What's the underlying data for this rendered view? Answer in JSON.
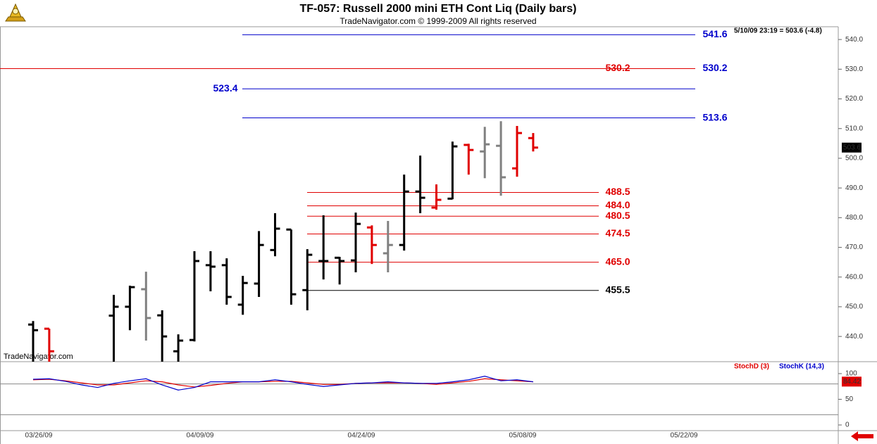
{
  "chart_data": [
    {
      "type": "ohlc",
      "title": "TF-057:  Russell 2000 mini ETH Cont Liq  (Daily bars)",
      "subtitle": "TradeNavigator.com © 1999-2009 All rights reserved",
      "quote": "5/10/09 23:19 = 503.6 (-4.8)",
      "watermark": "TradeNavigator.com",
      "categories": [
        "03/26/09",
        null,
        null,
        null,
        null,
        null,
        null,
        null,
        null,
        null,
        "04/09/09",
        null,
        null,
        null,
        null,
        null,
        null,
        null,
        null,
        null,
        "04/24/09",
        null,
        null,
        null,
        null,
        null,
        null,
        null,
        null,
        null,
        "05/08/09",
        null,
        null,
        null,
        null,
        null,
        null,
        null,
        null,
        null,
        "05/22/09"
      ],
      "open": [
        444,
        442.6,
        null,
        null,
        null,
        447,
        450,
        455.9,
        447.1,
        435,
        438.8,
        464,
        464,
        450.7,
        457.8,
        469.1,
        476,
        455.6,
        465.4,
        466.5,
        465.6,
        476.7,
        468,
        470.8,
        488.8,
        483.4,
        486.4,
        504.5,
        502.3,
        504.2,
        496.6,
        506.8,
        null,
        null,
        null,
        null,
        null,
        null,
        null,
        null,
        null
      ],
      "high": [
        445.2,
        442.6,
        null,
        null,
        null,
        454,
        457.1,
        461.8,
        448.8,
        440.7,
        468.7,
        468.7,
        466.3,
        460.4,
        475.5,
        481.5,
        476,
        469.4,
        480.8,
        466.8,
        481.7,
        477.4,
        478.9,
        494.5,
        500.9,
        491.2,
        505.6,
        504.9,
        510.6,
        512.5,
        510.9,
        508.5,
        null,
        null,
        null,
        null,
        null,
        null,
        null,
        null,
        null
      ],
      "low": [
        430,
        430,
        null,
        null,
        null,
        430,
        442.1,
        438.6,
        430,
        430,
        438.3,
        455.2,
        450.7,
        447.3,
        453.3,
        467,
        450.7,
        448.8,
        459.2,
        457.5,
        461.6,
        464.4,
        461.6,
        468.9,
        481.5,
        482.7,
        486.2,
        494.5,
        493.3,
        487.4,
        493.8,
        502.3,
        null,
        null,
        null,
        null,
        null,
        null,
        null,
        null,
        null
      ],
      "close": [
        442.1,
        435,
        null,
        null,
        null,
        450,
        456.6,
        446.2,
        440,
        438.6,
        465.4,
        463.5,
        453.3,
        458,
        470.8,
        476.3,
        454.2,
        467.5,
        465.4,
        465.4,
        477.9,
        470.8,
        470.8,
        488.8,
        486.7,
        486,
        504,
        502.8,
        504.7,
        493.6,
        508.5,
        503.6,
        null,
        null,
        null,
        null,
        null,
        null,
        null,
        null,
        null
      ],
      "bar_colors": [
        "#000000",
        "#e00000",
        null,
        null,
        null,
        "#000000",
        "#000000",
        "#808080",
        "#000000",
        "#000000",
        "#000000",
        "#000000",
        "#000000",
        "#000000",
        "#000000",
        "#000000",
        "#000000",
        "#000000",
        "#000000",
        "#000000",
        "#000000",
        "#e00000",
        "#808080",
        "#000000",
        "#000000",
        "#e00000",
        "#000000",
        "#e00000",
        "#808080",
        "#808080",
        "#e00000",
        "#e00000",
        null,
        null,
        null,
        null,
        null,
        null,
        null,
        null,
        null
      ],
      "ylim": [
        431.5,
        544.3
      ],
      "yticks": [
        {
          "value": 440,
          "label": "440.0"
        },
        {
          "value": 450,
          "label": "450.0"
        },
        {
          "value": 460,
          "label": "460.0"
        },
        {
          "value": 470,
          "label": "470.0"
        },
        {
          "value": 480,
          "label": "480.0"
        },
        {
          "value": 490,
          "label": "490.0"
        },
        {
          "value": 500,
          "label": "500.0"
        },
        {
          "value": 510,
          "label": "510.0"
        },
        {
          "value": 520,
          "label": "520.0"
        },
        {
          "value": 530,
          "label": "530.0"
        },
        {
          "value": 540,
          "label": "540.0"
        }
      ],
      "last_value": 503.6,
      "levels": [
        {
          "value": 541.6,
          "color": "#0000cc"
        },
        {
          "value": 530.2,
          "color": "#0000cc"
        },
        {
          "value": 523.4,
          "color": "#0000cc"
        },
        {
          "value": 513.6,
          "color": "#0000cc"
        },
        {
          "value": 530.2,
          "color": "#e00000"
        },
        {
          "value": 488.5,
          "color": "#e00000"
        },
        {
          "value": 484,
          "label": "484.0",
          "color": "#e00000"
        },
        {
          "value": 480.5,
          "color": "#e00000"
        },
        {
          "value": 474.5,
          "color": "#e00000"
        },
        {
          "value": 465,
          "label": "465.0",
          "color": "#e00000"
        },
        {
          "value": 455.5,
          "color": "#000000"
        }
      ]
    },
    {
      "type": "line",
      "series": [
        {
          "name": "StochD (3)",
          "color": "#e00000",
          "values": [
            88,
            89,
            86,
            82,
            78,
            78,
            82,
            86,
            84,
            78,
            74,
            77,
            81,
            84,
            84,
            85,
            85,
            82,
            79,
            79,
            81,
            82,
            82,
            82,
            81,
            79,
            82,
            85,
            90,
            88,
            86,
            84,
            null,
            null,
            null,
            null,
            null,
            null,
            null,
            null,
            null
          ]
        },
        {
          "name": "StochK (14,3)",
          "color": "#0000cc",
          "values": [
            89,
            90,
            85,
            78,
            73,
            81,
            86,
            90,
            78,
            68,
            73,
            84,
            84,
            84,
            84,
            88,
            84,
            79,
            75,
            78,
            81,
            82,
            84,
            82,
            81,
            81,
            84,
            88,
            95,
            86,
            88,
            84,
            null,
            null,
            null,
            null,
            null,
            null,
            null,
            null,
            null
          ]
        }
      ],
      "ylim": [
        -11,
        120.5
      ],
      "yticks": [
        0,
        50,
        100
      ],
      "ref_lines": [
        80,
        20
      ],
      "last_value": 84.42,
      "last_value_color": "#e00000"
    }
  ]
}
